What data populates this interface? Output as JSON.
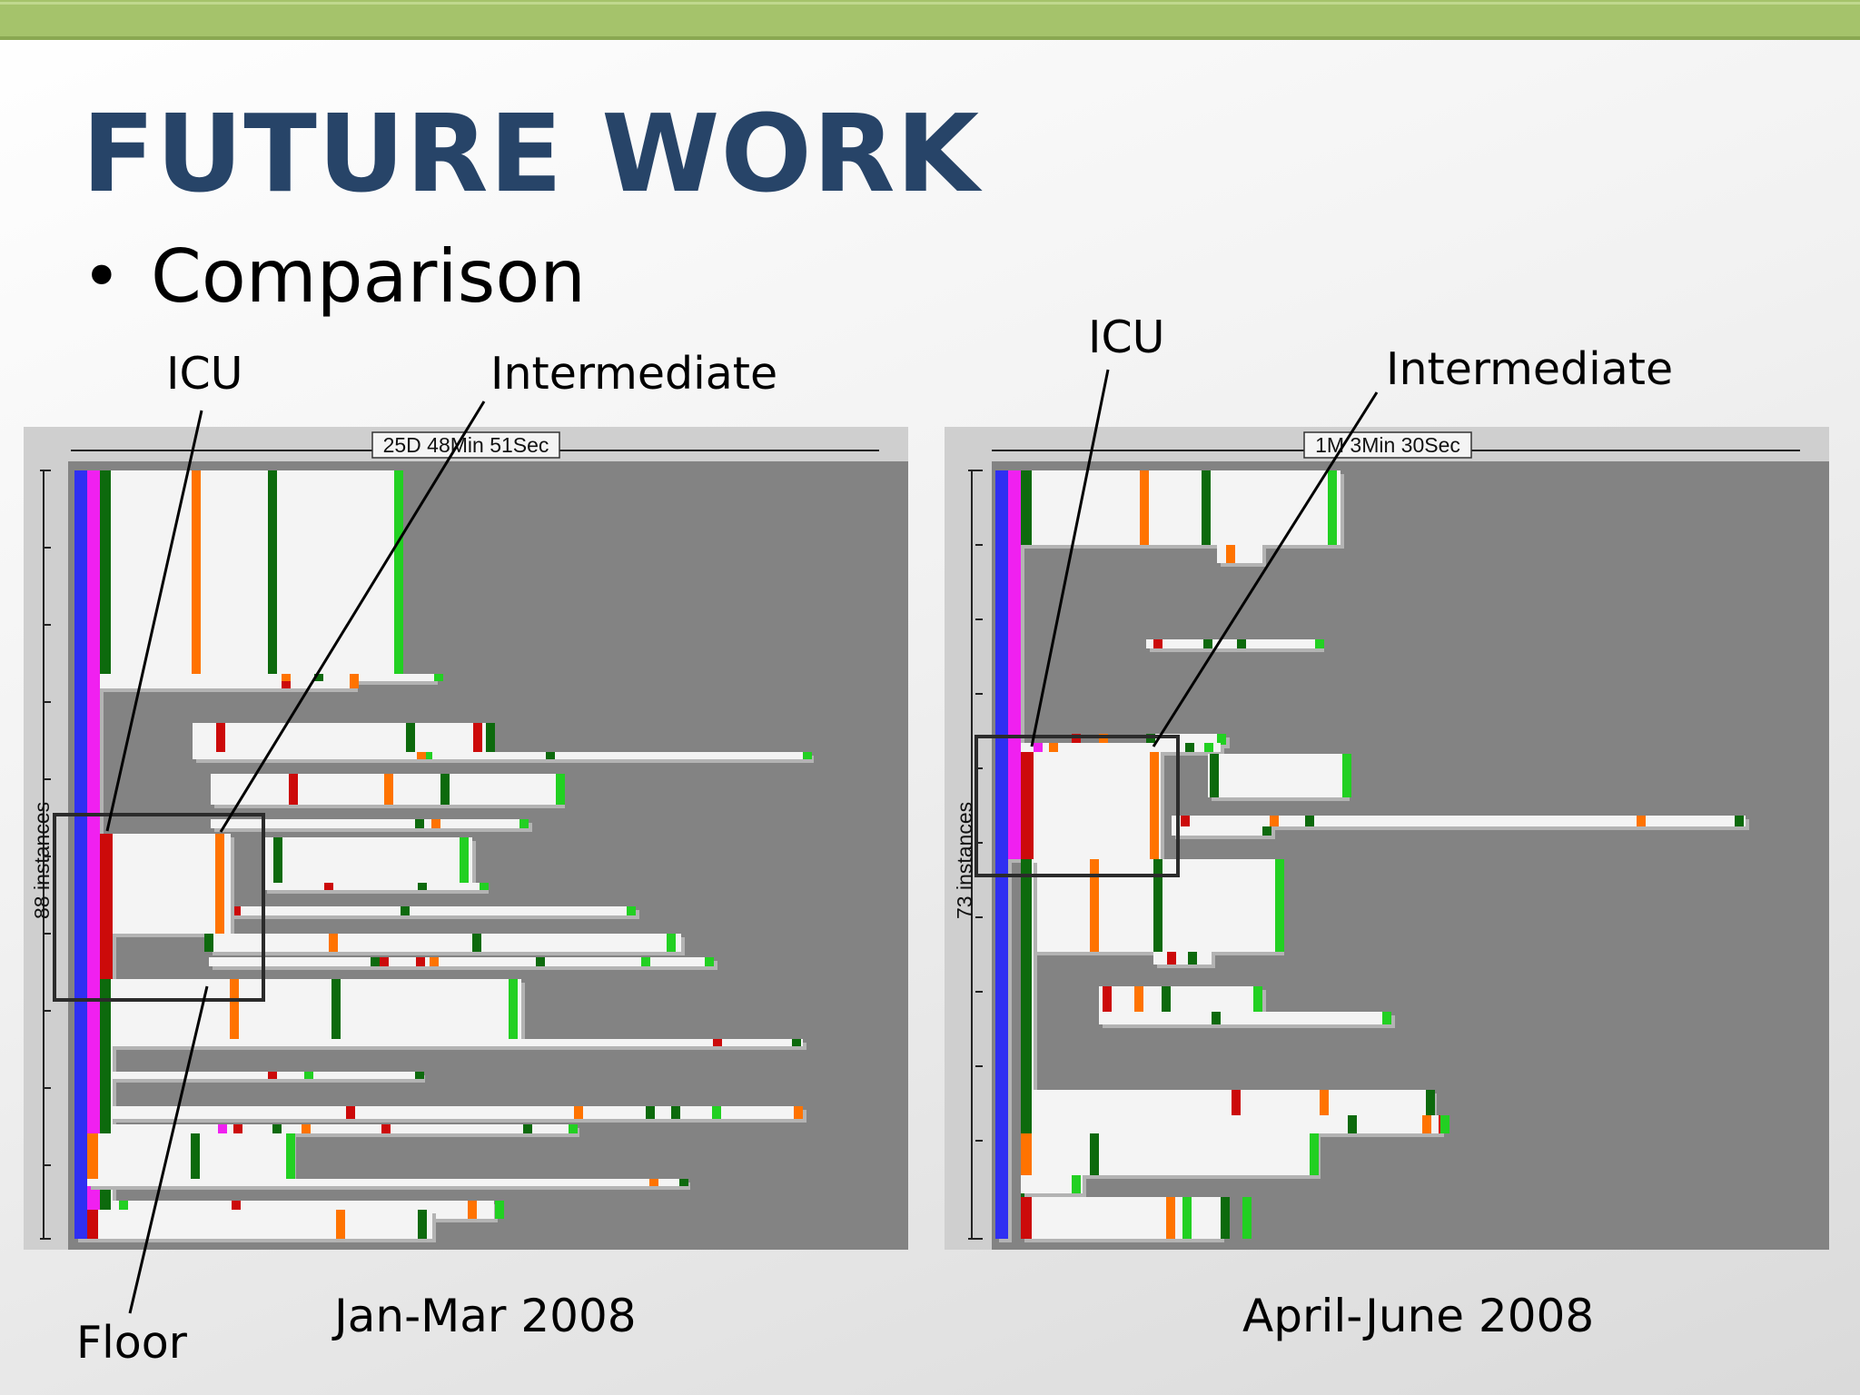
{
  "slide": {
    "title": "FUTURE WORK",
    "bullet_symbol": "•",
    "bullet": "Comparison"
  },
  "colors": {
    "accent_bar": "#a5c36b",
    "title": "#274468",
    "panel_background": "#cfcfcf",
    "plot_background": "#838383",
    "bar_fill": "#f4f4f4",
    "bar_shadow": "#b3b3b3",
    "blue": "#2f2ff2",
    "magenta": "#f020f0",
    "dark_green": "#0d6a0d",
    "light_green": "#22d022",
    "orange": "#ff7300",
    "red": "#cc0a0a"
  },
  "left_chart": {
    "duration": "25D 48Min 51Sec",
    "instances_label": "88 instances",
    "caption": "Jan-Mar 2008",
    "callouts": {
      "icu": "ICU",
      "intermediate": "Intermediate",
      "floor": "Floor"
    }
  },
  "right_chart": {
    "duration": "1M 3Min 30Sec",
    "instances_label": "73 instances",
    "caption": "April-June 2008",
    "callouts": {
      "icu": "ICU",
      "intermediate": "Intermediate"
    }
  }
}
